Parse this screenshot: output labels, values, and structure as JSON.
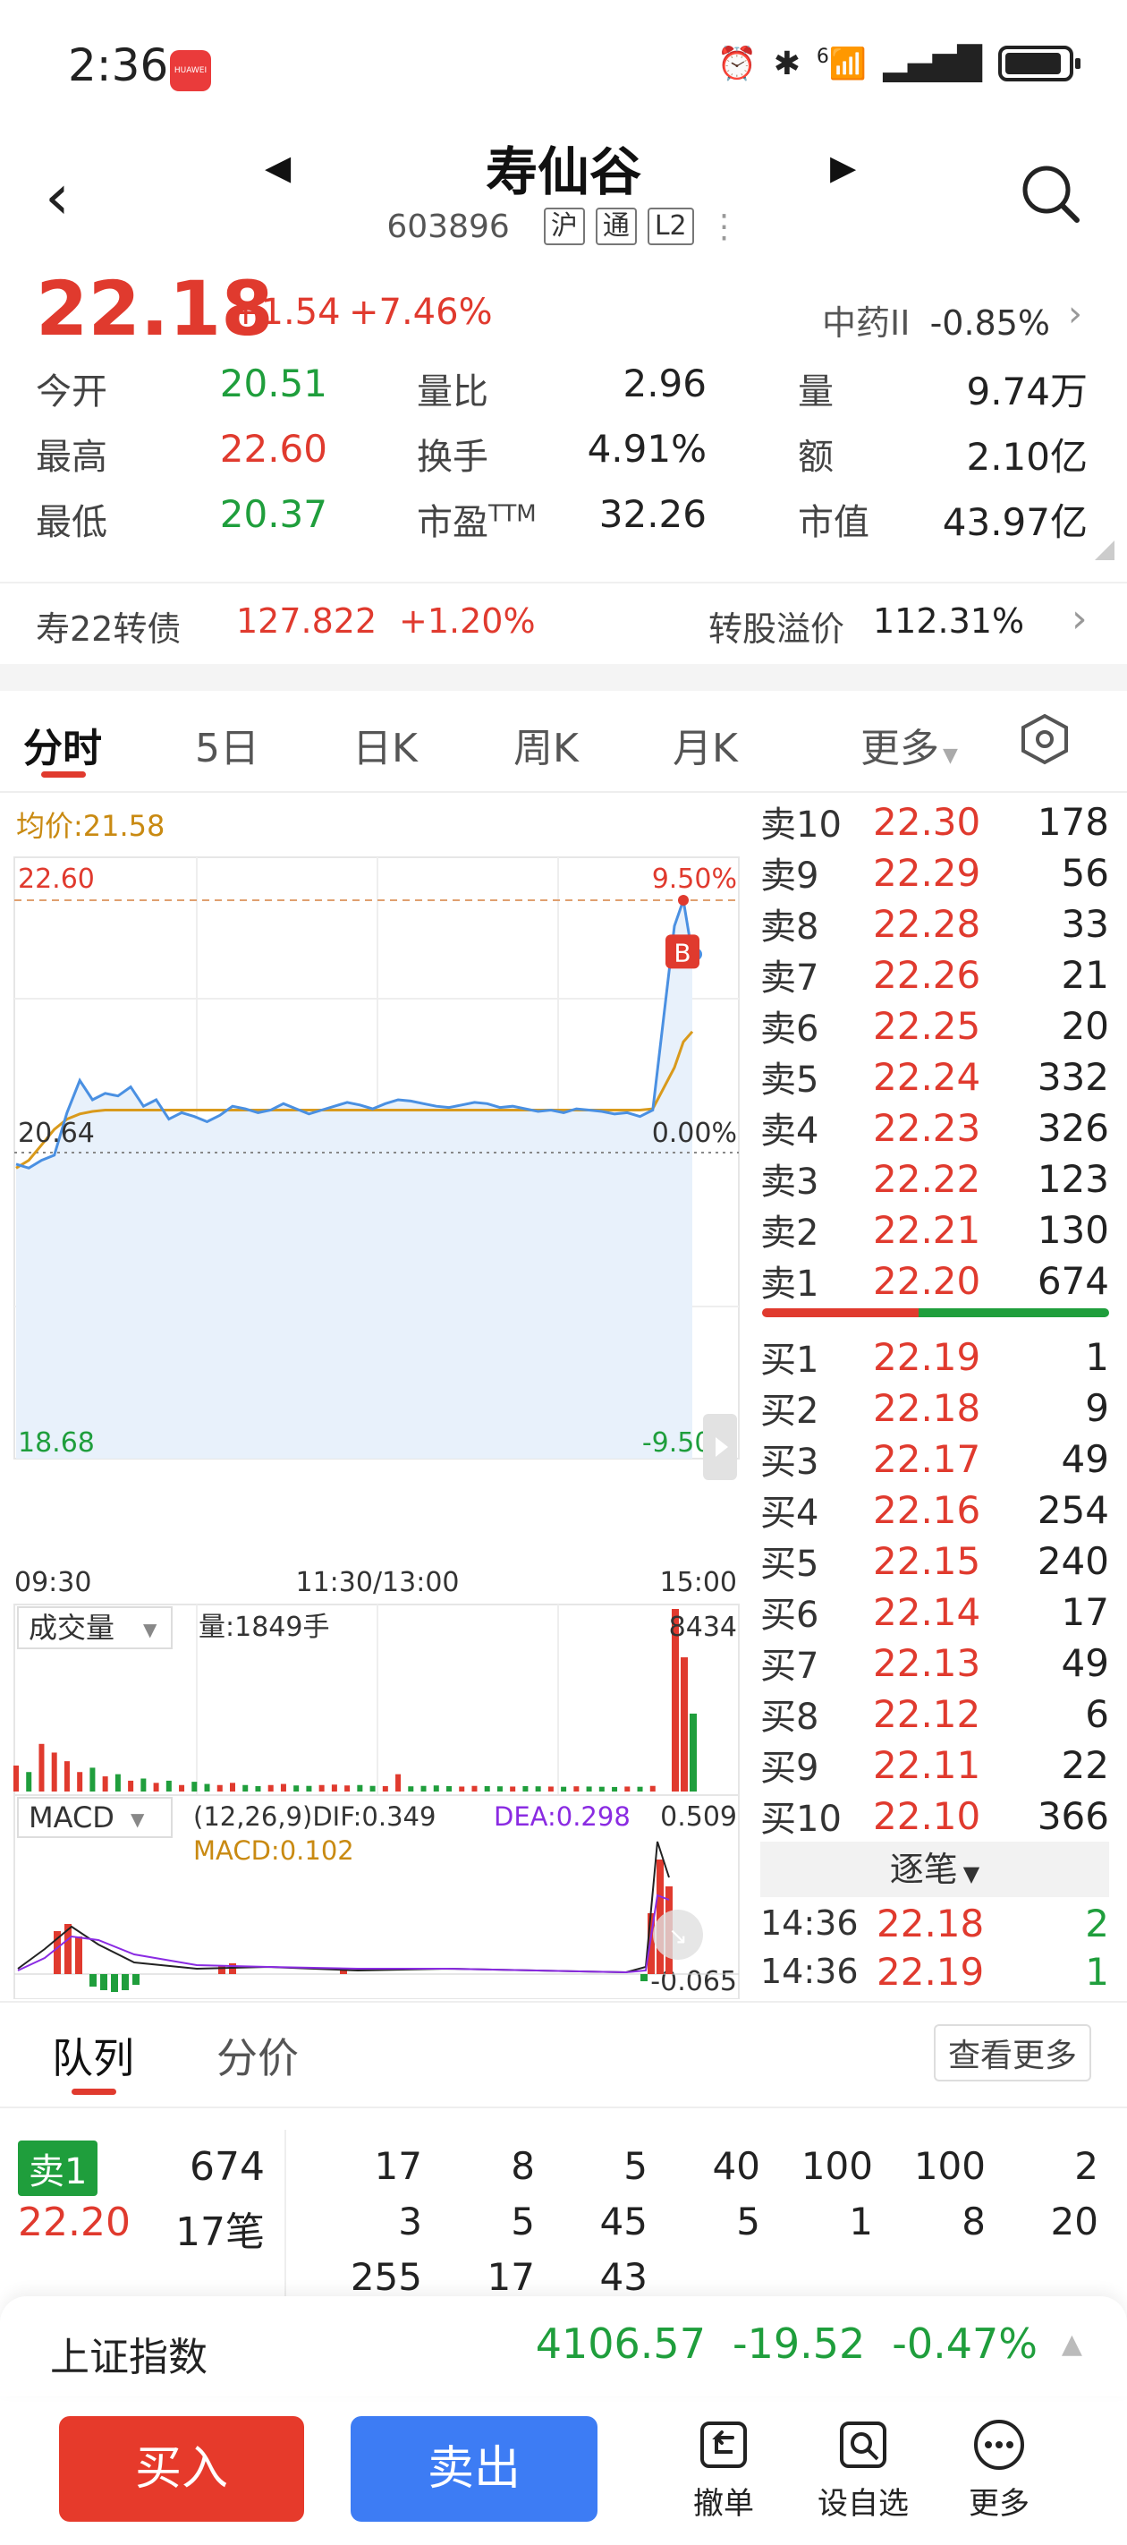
{
  "status_bar": {
    "time": "2:36",
    "app_badge": "HUAWEI",
    "network": "6"
  },
  "header": {
    "stock_name": "寿仙谷",
    "code": "603896",
    "tags": [
      "沪",
      "通",
      "L2"
    ]
  },
  "quote": {
    "price": "22.18",
    "change": "+1.54",
    "change_pct": "+7.46%",
    "sector_name": "中药II",
    "sector_change": "-0.85%",
    "stats": [
      [
        {
          "label": "今开",
          "value": "20.51",
          "color": "green"
        },
        {
          "label": "量比",
          "value": "2.96",
          "color": "dark"
        },
        {
          "label": "量",
          "value": "9.74万",
          "color": "dark"
        }
      ],
      [
        {
          "label": "最高",
          "value": "22.60",
          "color": "red"
        },
        {
          "label": "换手",
          "value": "4.91%",
          "color": "dark"
        },
        {
          "label": "额",
          "value": "2.10亿",
          "color": "dark"
        }
      ],
      [
        {
          "label": "最低",
          "value": "20.37",
          "color": "green"
        },
        {
          "label": "市盈",
          "sup": "TTM",
          "value": "32.26",
          "color": "dark"
        },
        {
          "label": "市值",
          "value": "43.97亿",
          "color": "dark"
        }
      ]
    ]
  },
  "bond": {
    "name": "寿22转债",
    "price": "127.822",
    "change_pct": "+1.20%",
    "premium_label": "转股溢价",
    "premium": "112.31%"
  },
  "tabs": [
    "分时",
    "5日",
    "日K",
    "周K",
    "月K",
    "更多"
  ],
  "chart": {
    "avg_label": "均价:21.58",
    "high_price": "22.60",
    "high_pct": "9.50%",
    "mid_price": "20.64",
    "mid_pct": "0.00%",
    "low_price": "18.68",
    "low_pct": "-9.50%",
    "time_start": "09:30",
    "time_mid": "11:30/13:00",
    "time_end": "15:00",
    "marker": "B",
    "volume_label": "成交量",
    "volume_info": "量:1849手",
    "volume_max": "8434",
    "macd_label": "MACD",
    "macd_params": "(12,26,9)DIF:0.349",
    "macd_dea": "DEA:0.298",
    "macd_value": "MACD:0.102",
    "macd_top": "0.509",
    "macd_bottom": "-0.065"
  },
  "chart_data": {
    "type": "line",
    "title": "",
    "x_range": [
      "09:30",
      "15:00"
    ],
    "ylim": [
      18.68,
      22.6
    ],
    "prev_close": 20.64,
    "series": [
      {
        "name": "",
        "values": [
          20.55,
          20.52,
          20.58,
          20.62,
          20.95,
          21.2,
          21.05,
          21.1,
          21.08,
          21.15,
          21.0,
          21.05,
          20.9,
          20.95,
          20.92,
          20.88,
          20.93,
          21.0,
          20.98,
          20.95,
          20.97,
          21.02,
          20.98,
          20.94,
          20.97,
          21.0,
          21.03,
          21.01,
          20.98,
          21.02,
          21.05,
          21.04,
          21.02,
          21.0,
          20.99,
          21.01,
          21.03,
          21.02,
          20.99,
          21.0,
          20.98,
          20.96,
          20.97,
          20.95,
          20.98,
          20.97,
          20.96,
          20.94,
          20.95,
          20.92,
          20.97,
          22.4,
          22.6,
          22.18
        ]
      },
      {
        "name": "均价",
        "values": [
          20.52,
          20.58,
          20.7,
          20.82,
          20.9,
          20.94,
          20.96,
          20.97,
          20.97,
          20.97,
          20.97,
          20.97,
          20.97,
          20.97,
          20.97,
          20.97,
          20.97,
          20.97,
          20.97,
          20.97,
          20.97,
          20.97,
          20.97,
          20.97,
          20.97,
          20.97,
          20.97,
          20.97,
          20.97,
          20.97,
          20.97,
          20.97,
          20.97,
          20.97,
          20.97,
          20.97,
          20.97,
          20.97,
          20.97,
          20.97,
          20.97,
          20.97,
          20.97,
          20.97,
          20.97,
          20.97,
          20.97,
          20.97,
          20.97,
          20.97,
          20.98,
          21.3,
          21.5,
          21.58
        ]
      }
    ],
    "volume_max": 8434,
    "volumes": [
      1200,
      900,
      2200,
      1800,
      1400,
      900,
      1100,
      700,
      800,
      500,
      600,
      400,
      500,
      300,
      450,
      350,
      300,
      400,
      300,
      250,
      300,
      350,
      280,
      260,
      300,
      320,
      280,
      300,
      260,
      250,
      800,
      240,
      260,
      280,
      250,
      230,
      260,
      250,
      240,
      230,
      250,
      240,
      230,
      220,
      240,
      230,
      220,
      210,
      230,
      220,
      260,
      8434,
      6200,
      3600
    ],
    "grid": true
  },
  "order_book": {
    "asks": [
      {
        "label": "卖10",
        "price": "22.30",
        "vol": "178"
      },
      {
        "label": "卖9",
        "price": "22.29",
        "vol": "56"
      },
      {
        "label": "卖8",
        "price": "22.28",
        "vol": "33"
      },
      {
        "label": "卖7",
        "price": "22.26",
        "vol": "21"
      },
      {
        "label": "卖6",
        "price": "22.25",
        "vol": "20"
      },
      {
        "label": "卖5",
        "price": "22.24",
        "vol": "332"
      },
      {
        "label": "卖4",
        "price": "22.23",
        "vol": "326"
      },
      {
        "label": "卖3",
        "price": "22.22",
        "vol": "123"
      },
      {
        "label": "卖2",
        "price": "22.21",
        "vol": "130"
      },
      {
        "label": "卖1",
        "price": "22.20",
        "vol": "674"
      }
    ],
    "bids": [
      {
        "label": "买1",
        "price": "22.19",
        "vol": "1"
      },
      {
        "label": "买2",
        "price": "22.18",
        "vol": "9"
      },
      {
        "label": "买3",
        "price": "22.17",
        "vol": "49"
      },
      {
        "label": "买4",
        "price": "22.16",
        "vol": "254"
      },
      {
        "label": "买5",
        "price": "22.15",
        "vol": "240"
      },
      {
        "label": "买6",
        "price": "22.14",
        "vol": "17"
      },
      {
        "label": "买7",
        "price": "22.13",
        "vol": "49"
      },
      {
        "label": "买8",
        "price": "22.12",
        "vol": "6"
      },
      {
        "label": "买9",
        "price": "22.11",
        "vol": "22"
      },
      {
        "label": "买10",
        "price": "22.10",
        "vol": "366"
      }
    ],
    "tick_label": "逐笔",
    "ticks": [
      {
        "time": "14:36",
        "price": "22.18",
        "vol": "2"
      },
      {
        "time": "14:36",
        "price": "22.19",
        "vol": "1"
      }
    ]
  },
  "queue": {
    "tabs": [
      "队列",
      "分价"
    ],
    "view_more": "查看更多",
    "side_label": "卖1",
    "volume": "674",
    "price": "22.20",
    "count": "17笔",
    "rows": [
      [
        "17",
        "8",
        "5",
        "40",
        "100",
        "100",
        "2"
      ],
      [
        "3",
        "5",
        "45",
        "5",
        "1",
        "8",
        "20"
      ],
      [
        "255",
        "17",
        "43"
      ]
    ]
  },
  "index_bar": {
    "name": "上证指数",
    "value": "4106.57",
    "change": "-19.52",
    "change_pct": "-0.47%"
  },
  "actions": {
    "buy": "买入",
    "sell": "卖出",
    "cancel": "撤单",
    "watchlist": "设自选",
    "more": "更多"
  },
  "colors": {
    "up": "#e03a2e",
    "down": "#1f9e3c",
    "price_line": "#4a90e2",
    "avg_line": "#d99a1c",
    "sell_button": "#3d7cf4",
    "buy_button": "#e63a2b"
  }
}
